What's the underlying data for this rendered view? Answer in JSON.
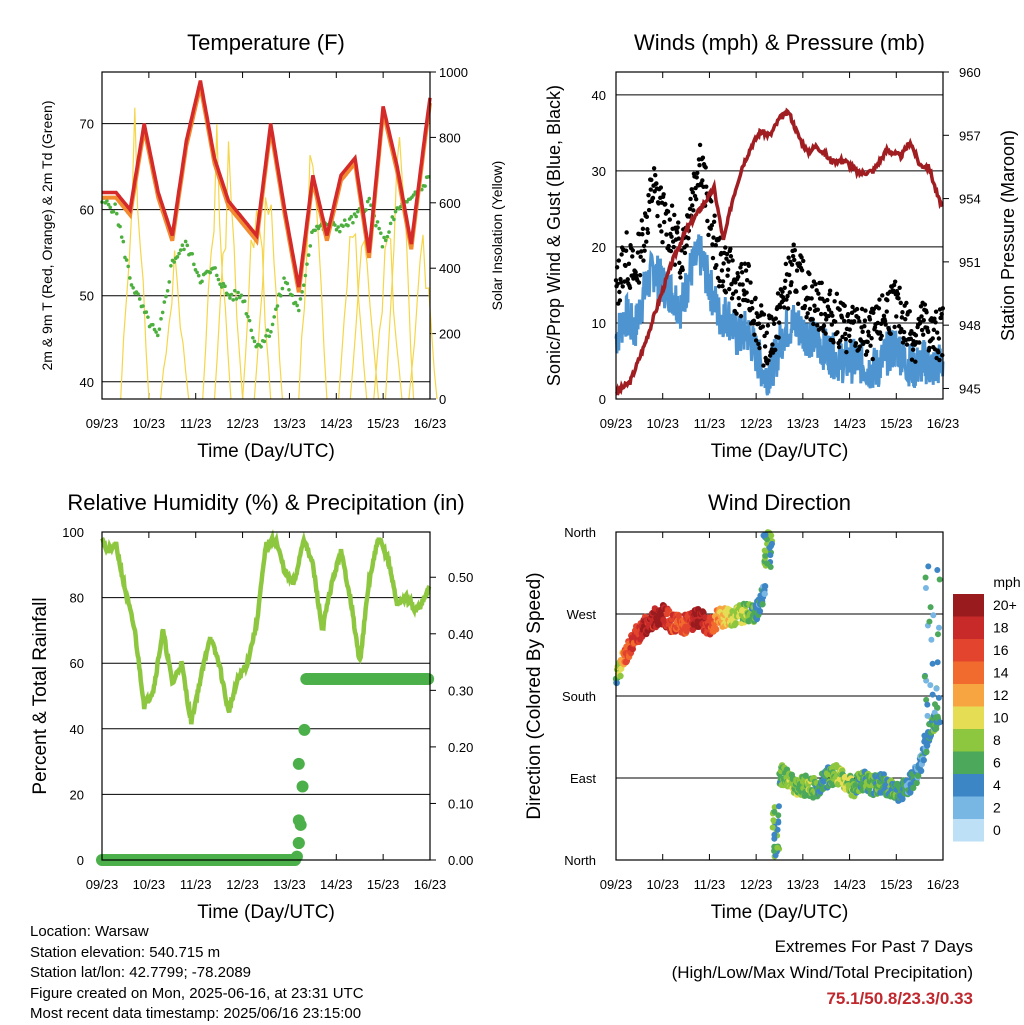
{
  "x_ticks": [
    "09/23",
    "10/23",
    "11/23",
    "12/23",
    "13/23",
    "14/23",
    "15/23",
    "16/23"
  ],
  "chart_data": [
    {
      "type": "line",
      "title": "Temperature (F)",
      "xlabel": "Time (Day/UTC)",
      "ylabel": "2m & 9m T (Red, Orange) & 2m Td (Green)",
      "ylabel_right": "Solar Insolation (Yellow)",
      "ylim": [
        38,
        76
      ],
      "y_ticks": [
        40,
        50,
        60,
        70
      ],
      "ylim_right": [
        0,
        1000
      ],
      "y_ticks_right": [
        0,
        200,
        400,
        600,
        800,
        1000
      ],
      "colors": {
        "t2": "#d42a2a",
        "t9": "#f28a30",
        "td": "#4caf3e",
        "solar": "#f5d64a"
      },
      "series": [
        {
          "name": "2m T",
          "x": [
            0,
            0.3,
            0.6,
            0.9,
            1.2,
            1.5,
            1.8,
            2.1,
            2.4,
            2.7,
            3.0,
            3.3,
            3.6,
            3.9,
            4.2,
            4.5,
            4.8,
            5.1,
            5.4,
            5.7,
            6.0,
            6.3,
            6.6,
            6.9,
            7.0
          ],
          "values": [
            62,
            62,
            60,
            70,
            62,
            57,
            68,
            75,
            66,
            61,
            59,
            57,
            70,
            60,
            51,
            64,
            57,
            64,
            66,
            55,
            72,
            65,
            56,
            69,
            73
          ]
        },
        {
          "name": "2m Td",
          "x": [
            0,
            0.3,
            0.6,
            0.9,
            1.2,
            1.5,
            1.8,
            2.1,
            2.4,
            2.7,
            3.0,
            3.3,
            3.6,
            3.9,
            4.2,
            4.5,
            4.8,
            5.1,
            5.4,
            5.7,
            6.0,
            6.3,
            6.6,
            6.9,
            7.0
          ],
          "values": [
            61,
            60,
            52,
            48,
            45,
            54,
            56,
            52,
            53,
            50,
            50,
            44,
            46,
            52,
            48,
            58,
            58,
            58,
            59,
            61,
            56,
            60,
            61,
            63,
            65
          ]
        },
        {
          "name": "Solar",
          "peaks": [
            {
              "x": 0.7,
              "v": 960
            },
            {
              "x": 1.55,
              "v": 480
            },
            {
              "x": 2.45,
              "v": 870
            },
            {
              "x": 2.7,
              "v": 800
            },
            {
              "x": 3.3,
              "v": 820
            },
            {
              "x": 3.55,
              "v": 780
            },
            {
              "x": 4.5,
              "v": 960
            },
            {
              "x": 5.35,
              "v": 650
            },
            {
              "x": 5.6,
              "v": 620
            },
            {
              "x": 6.1,
              "v": 620
            },
            {
              "x": 6.35,
              "v": 980
            },
            {
              "x": 6.85,
              "v": 600
            }
          ]
        }
      ]
    },
    {
      "type": "line",
      "title": "Winds (mph) & Pressure (mb)",
      "xlabel": "Time (Day/UTC)",
      "ylabel": "Sonic/Prop Wind & Gust (Blue, Black)",
      "ylabel_right": "Station Pressure (Maroon)",
      "ylim": [
        0,
        43
      ],
      "y_ticks": [
        0,
        10,
        20,
        30,
        40
      ],
      "ylim_right": [
        944.5,
        960
      ],
      "y_ticks_right": [
        945,
        948,
        951,
        954,
        957,
        960
      ],
      "colors": {
        "wind": "#4d94d0",
        "gust": "#000000",
        "pressure": "#a01e22"
      },
      "series": [
        {
          "name": "Wind",
          "x": [
            0,
            0.2,
            0.4,
            0.6,
            0.8,
            1.0,
            1.2,
            1.4,
            1.6,
            1.8,
            2.0,
            2.2,
            2.4,
            2.6,
            2.8,
            3.0,
            3.2,
            3.4,
            3.6,
            3.8,
            4.0,
            4.2,
            4.4,
            4.6,
            4.8,
            5.0,
            5.2,
            5.4,
            5.6,
            5.8,
            6.0,
            6.2,
            6.4,
            6.6,
            6.8,
            7.0
          ],
          "values": [
            8,
            11,
            9,
            14,
            17,
            15,
            14,
            12,
            17,
            19,
            15,
            11,
            11,
            8,
            9,
            6,
            3,
            5,
            9,
            10,
            9,
            8,
            7,
            6,
            5,
            5,
            5,
            4,
            4,
            6,
            7,
            5,
            4,
            5,
            4,
            5
          ]
        },
        {
          "name": "Gust",
          "x": [
            0,
            0.2,
            0.4,
            0.6,
            0.8,
            1.0,
            1.2,
            1.4,
            1.6,
            1.8,
            2.0,
            2.2,
            2.4,
            2.6,
            2.8,
            3.0,
            3.2,
            3.4,
            3.6,
            3.8,
            4.0,
            4.2,
            4.4,
            4.6,
            4.8,
            5.0,
            5.2,
            5.4,
            5.6,
            5.8,
            6.0,
            6.2,
            6.4,
            6.6,
            6.8,
            7.0
          ],
          "values": [
            14,
            19,
            16,
            22,
            28,
            24,
            22,
            19,
            26,
            32,
            24,
            18,
            17,
            14,
            15,
            11,
            7,
            9,
            14,
            17,
            15,
            13,
            12,
            11,
            10,
            9,
            9,
            8,
            9,
            12,
            12,
            10,
            8,
            10,
            8,
            9
          ]
        },
        {
          "name": "Pressure",
          "x": [
            0,
            0.3,
            0.6,
            0.9,
            1.2,
            1.5,
            1.8,
            2.1,
            2.3,
            2.5,
            2.7,
            2.9,
            3.1,
            3.3,
            3.5,
            3.7,
            3.9,
            4.1,
            4.3,
            4.6,
            4.9,
            5.2,
            5.5,
            5.8,
            6.1,
            6.3,
            6.5,
            6.7,
            6.9,
            7.0
          ],
          "values": [
            944.8,
            945.3,
            947,
            949,
            951,
            952.5,
            953.5,
            954.5,
            952,
            954,
            955.5,
            956.5,
            957.2,
            957,
            957.8,
            958.1,
            957,
            956.2,
            956.5,
            955.8,
            955.8,
            955.2,
            955.3,
            956.3,
            956,
            956.7,
            955.6,
            955.5,
            954,
            953.6
          ]
        }
      ]
    },
    {
      "type": "line",
      "title": "Relative Humidity (%) & Precipitation (in)",
      "xlabel": "Time (Day/UTC)",
      "ylabel": "Percent & Total Rainfall",
      "ylim": [
        0,
        100
      ],
      "y_ticks": [
        0,
        20,
        40,
        60,
        80,
        100
      ],
      "ylim_right": [
        0,
        0.58
      ],
      "y_ticks_right": [
        "0.00",
        "0.10",
        "0.20",
        "0.30",
        "0.40",
        "0.50"
      ],
      "colors": {
        "rh": "#8dc63f",
        "precip": "#4cb04a"
      },
      "series": [
        {
          "name": "RH",
          "x": [
            0,
            0.1,
            0.3,
            0.5,
            0.7,
            0.9,
            1.1,
            1.3,
            1.5,
            1.7,
            1.9,
            2.1,
            2.3,
            2.5,
            2.7,
            2.9,
            3.1,
            3.3,
            3.5,
            3.7,
            3.9,
            4.1,
            4.3,
            4.5,
            4.7,
            4.9,
            5.1,
            5.3,
            5.5,
            5.7,
            5.9,
            6.1,
            6.3,
            6.5,
            6.7,
            6.9,
            7.0
          ],
          "values": [
            99,
            94,
            96,
            82,
            70,
            47,
            52,
            70,
            54,
            60,
            42,
            55,
            68,
            60,
            45,
            55,
            60,
            72,
            96,
            98,
            88,
            84,
            98,
            90,
            70,
            84,
            94,
            80,
            60,
            85,
            98,
            92,
            78,
            80,
            76,
            80,
            84
          ]
        },
        {
          "name": "Precipitation",
          "x": [
            0,
            1,
            2,
            3,
            4.15,
            4.2,
            4.25,
            4.3,
            4.35,
            5,
            6,
            7
          ],
          "values": [
            0,
            0,
            0,
            0,
            0,
            0.03,
            0.07,
            0.17,
            0.32,
            0.32,
            0.32,
            0.32
          ]
        }
      ]
    },
    {
      "type": "scatter",
      "title": "Wind Direction",
      "xlabel": "Time (Day/UTC)",
      "ylabel": "Direction (Colored By Speed)",
      "y_ticks": [
        "North",
        "East",
        "South",
        "West",
        "North"
      ],
      "legend": {
        "title": "mph",
        "labels": [
          "20+",
          "18",
          "16",
          "14",
          "12",
          "10",
          "8",
          "6",
          "4",
          "2",
          "0"
        ],
        "colors": [
          "#9a1b1e",
          "#c82a2a",
          "#e2442d",
          "#f26b2e",
          "#f7a541",
          "#e5de55",
          "#8dc63f",
          "#4ca85a",
          "#3d86c6",
          "#78b6e3",
          "#bde0f6"
        ]
      },
      "segments": [
        {
          "x": [
            0,
            0.2,
            0.4,
            0.6,
            0.8,
            1.0,
            1.2,
            1.4,
            1.6,
            1.8,
            2.0,
            2.2,
            2.4,
            2.6,
            2.8,
            3.0,
            3.1,
            3.2
          ],
          "dir": [
            200,
            225,
            245,
            255,
            265,
            270,
            260,
            258,
            262,
            265,
            255,
            266,
            268,
            268,
            272,
            270,
            285,
            300
          ],
          "speed": [
            6,
            14,
            17,
            18,
            19,
            20,
            16,
            15,
            17,
            20,
            16,
            12,
            10,
            9,
            8,
            6,
            4,
            3
          ]
        },
        {
          "x": [
            3.5,
            3.7,
            3.9,
            4.1,
            4.3,
            4.5,
            4.7,
            4.9,
            5.1,
            5.3,
            5.5,
            5.7,
            5.9,
            6.1,
            6.3,
            6.5,
            6.7,
            6.9
          ],
          "dir": [
            95,
            88,
            80,
            82,
            78,
            90,
            95,
            86,
            80,
            88,
            82,
            85,
            78,
            75,
            85,
            100,
            140,
            160
          ],
          "speed": [
            6,
            9,
            7,
            8,
            6,
            5,
            8,
            9,
            7,
            6,
            7,
            5,
            6,
            5,
            4,
            4,
            5,
            6
          ]
        }
      ]
    }
  ],
  "info": {
    "location": "Location: Warsaw",
    "elevation": "Station elevation: 540.715 m",
    "latlon": "Station lat/lon: 42.7799; -78.2089",
    "created": "Figure created on Mon, 2025-06-16, at 23:31 UTC",
    "recent": "Most recent data timestamp: 2025/06/16 23:15:00"
  },
  "extremes": {
    "title": "Extremes For Past 7 Days",
    "subtitle": "(High/Low/Max Wind/Total Precipitation)",
    "values": "75.1/50.8/23.3/0.33"
  }
}
